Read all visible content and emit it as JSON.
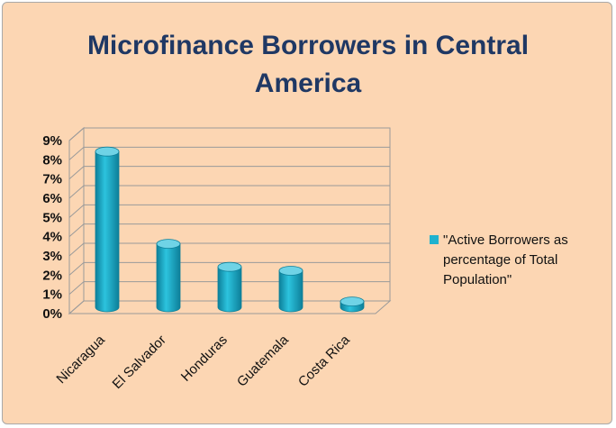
{
  "chart_data": {
    "type": "bar",
    "title_lines": [
      "Microfinance Borrowers in Central",
      "America"
    ],
    "categories": [
      "Nicaragua",
      "El Salvador",
      "Honduras",
      "Guatemala",
      "Costa Rica"
    ],
    "series": [
      {
        "name": "\"Active Borrowers as percentage of Total Population\"",
        "legend_lines": [
          "\"Active Borrowers as",
          "percentage of Total",
          "Population\""
        ],
        "values": [
          8.1,
          3.3,
          2.1,
          1.9,
          0.3
        ]
      }
    ],
    "yticks": [
      "0%",
      "1%",
      "2%",
      "3%",
      "4%",
      "5%",
      "6%",
      "7%",
      "8%",
      "9%"
    ],
    "ylim": [
      0,
      9
    ],
    "xlabel": "",
    "ylabel": "",
    "grid": true,
    "legend_position": "right",
    "style": "3d-cylinder",
    "colors": {
      "background": "#fcd6b3",
      "bar": "#1fb2cf",
      "bar_dark": "#0d7f99",
      "bar_top": "#6fd3e6",
      "title": "#1f3864"
    }
  }
}
